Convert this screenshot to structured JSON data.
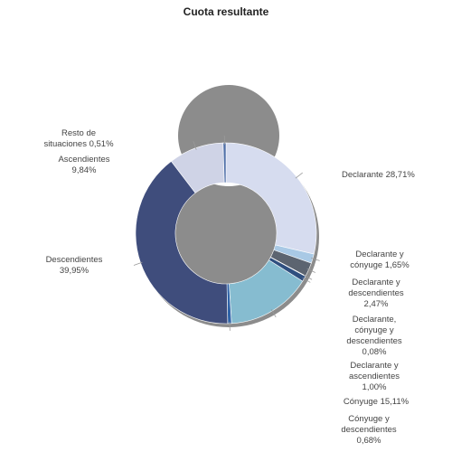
{
  "chart_data": {
    "type": "pie",
    "variant": "donut",
    "title": "Cuota resultante",
    "slices": [
      {
        "name": "Declarante",
        "value": 28.71,
        "display": "28,71%",
        "color": "#d6dcef",
        "label_lines": [
          "Declarante 28,71%"
        ]
      },
      {
        "name": "Declarante y cónyuge",
        "value": 1.65,
        "display": "1,65%",
        "color": "#a9c9e5",
        "label_lines": [
          "Declarante y",
          "cónyuge 1,65%"
        ]
      },
      {
        "name": "Declarante y descendientes",
        "value": 2.47,
        "display": "2,47%",
        "color": "#5c6470",
        "label_lines": [
          "Declarante y",
          "descendientes",
          "2,47%"
        ]
      },
      {
        "name": "Declarante, cónyuge y descendientes",
        "value": 0.08,
        "display": "0,08%",
        "color": "#8a9099",
        "label_lines": [
          "Declarante,",
          "cónyuge y",
          "descendientes",
          "0,08%"
        ]
      },
      {
        "name": "Declarante y ascendientes",
        "value": 1.0,
        "display": "1,00%",
        "color": "#2f4f7f",
        "label_lines": [
          "Declarante y",
          "ascendientes",
          "1,00%"
        ]
      },
      {
        "name": "Cónyuge",
        "value": 15.11,
        "display": "15,11%",
        "color": "#86bcd0",
        "label_lines": [
          "Cónyuge 15,11%"
        ]
      },
      {
        "name": "Cónyuge y descendientes",
        "value": 0.68,
        "display": "0,68%",
        "color": "#2e63a8",
        "label_lines": [
          "Cónyuge y",
          "descendientes",
          "0,68%"
        ]
      },
      {
        "name": "Descendientes",
        "value": 39.95,
        "display": "39,95%",
        "color": "#3f4d7c",
        "label_lines": [
          "Descendientes",
          "39,95%"
        ]
      },
      {
        "name": "Ascendientes",
        "value": 9.84,
        "display": "9,84%",
        "color": "#cfd3e6",
        "label_lines": [
          "Ascendientes",
          "9,84%"
        ]
      },
      {
        "name": "Resto de situaciones",
        "value": 0.51,
        "display": "0,51%",
        "color": "#4f6fa8",
        "label_lines": [
          "Resto de",
          "situaciones 0,51%"
        ]
      }
    ],
    "legend": "none"
  }
}
